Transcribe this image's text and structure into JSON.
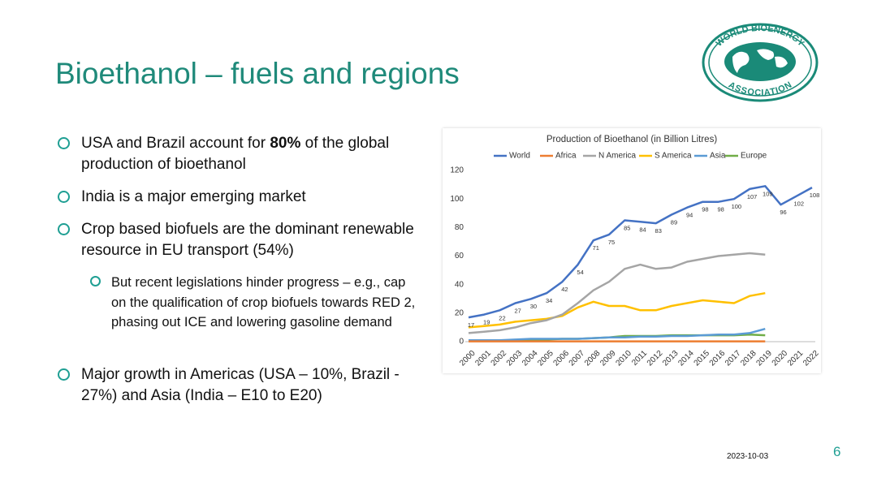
{
  "header": {
    "title": "Bioethanol – fuels and regions"
  },
  "logo": {
    "top": "WORLD BIOENERGY",
    "bottom": "ASSOCIATION"
  },
  "bullets": [
    {
      "parts": [
        "USA and Brazil account for",
        "80%",
        "of the global production of bioethanol"
      ]
    },
    {
      "text": "India is a major emerging market"
    },
    {
      "text": "Crop based biofuels are the dominant renewable resource in EU transport (54%)"
    },
    {
      "text": "But recent legislations hinder progress – e.g., cap on the qualification of crop biofuels towards RED 2, phasing out ICE and lowering gasoline demand"
    },
    {
      "text": "Major growth in Americas (USA – 10%, Brazil - 27%) and Asia (India – E10 to E20)"
    }
  ],
  "footer": {
    "date": "2023-10-03",
    "page": "6"
  },
  "chart_data": {
    "type": "line",
    "title": "Production of Bioethanol (in Billion Litres)",
    "categories": [
      "2000",
      "2001",
      "2002",
      "2003",
      "2004",
      "2005",
      "2006",
      "2007",
      "2008",
      "2009",
      "2010",
      "2011",
      "2012",
      "2013",
      "2014",
      "2015",
      "2016",
      "2017",
      "2018",
      "2019",
      "2020",
      "2021",
      "2022"
    ],
    "series": [
      {
        "name": "World",
        "color": "#4472c4",
        "data_labels": true,
        "values": [
          17,
          19,
          22,
          27,
          30,
          34,
          42,
          54,
          71,
          75,
          85,
          84,
          83,
          89,
          94,
          98,
          98,
          100,
          107,
          109,
          96,
          102,
          108
        ]
      },
      {
        "name": "Africa",
        "color": "#ed7d31",
        "values": [
          0.2,
          0.2,
          0.2,
          0.2,
          0.2,
          0.2,
          0.2,
          0.2,
          0.2,
          0.2,
          0.2,
          0.2,
          0.2,
          0.2,
          0.2,
          0.2,
          0.2,
          0.2,
          0.2,
          0.2,
          null,
          null,
          null
        ]
      },
      {
        "name": "N America",
        "color": "#a5a5a5",
        "values": [
          6,
          7,
          8,
          10,
          13,
          15,
          19,
          27,
          36,
          42,
          51,
          54,
          51,
          52,
          56,
          58,
          60,
          61,
          62,
          61,
          null,
          null,
          null
        ]
      },
      {
        "name": "S America",
        "color": "#ffc000",
        "values": [
          10,
          11,
          12,
          14,
          15,
          16,
          18,
          24,
          28,
          25,
          25,
          22,
          22,
          25,
          27,
          29,
          28,
          27,
          32,
          34,
          null,
          null,
          null
        ]
      },
      {
        "name": "Asia",
        "color": "#5b9bd5",
        "values": [
          1,
          1,
          1,
          1.5,
          2,
          2,
          2,
          2,
          2.5,
          3,
          3,
          3.5,
          3.5,
          4,
          4,
          4.5,
          5,
          5,
          6,
          9,
          null,
          null,
          null
        ]
      },
      {
        "name": "Europe",
        "color": "#70ad47",
        "values": [
          0.5,
          0.5,
          0.7,
          1,
          1,
          1.5,
          2,
          2,
          2.5,
          3,
          4,
          4,
          4,
          4.5,
          4.5,
          4.5,
          4.5,
          4.5,
          5,
          4.5,
          null,
          null,
          null
        ]
      }
    ],
    "ylim": [
      0,
      120
    ],
    "yticks": [
      0,
      20,
      40,
      60,
      80,
      100,
      120
    ],
    "grid": false,
    "legend": "top"
  }
}
